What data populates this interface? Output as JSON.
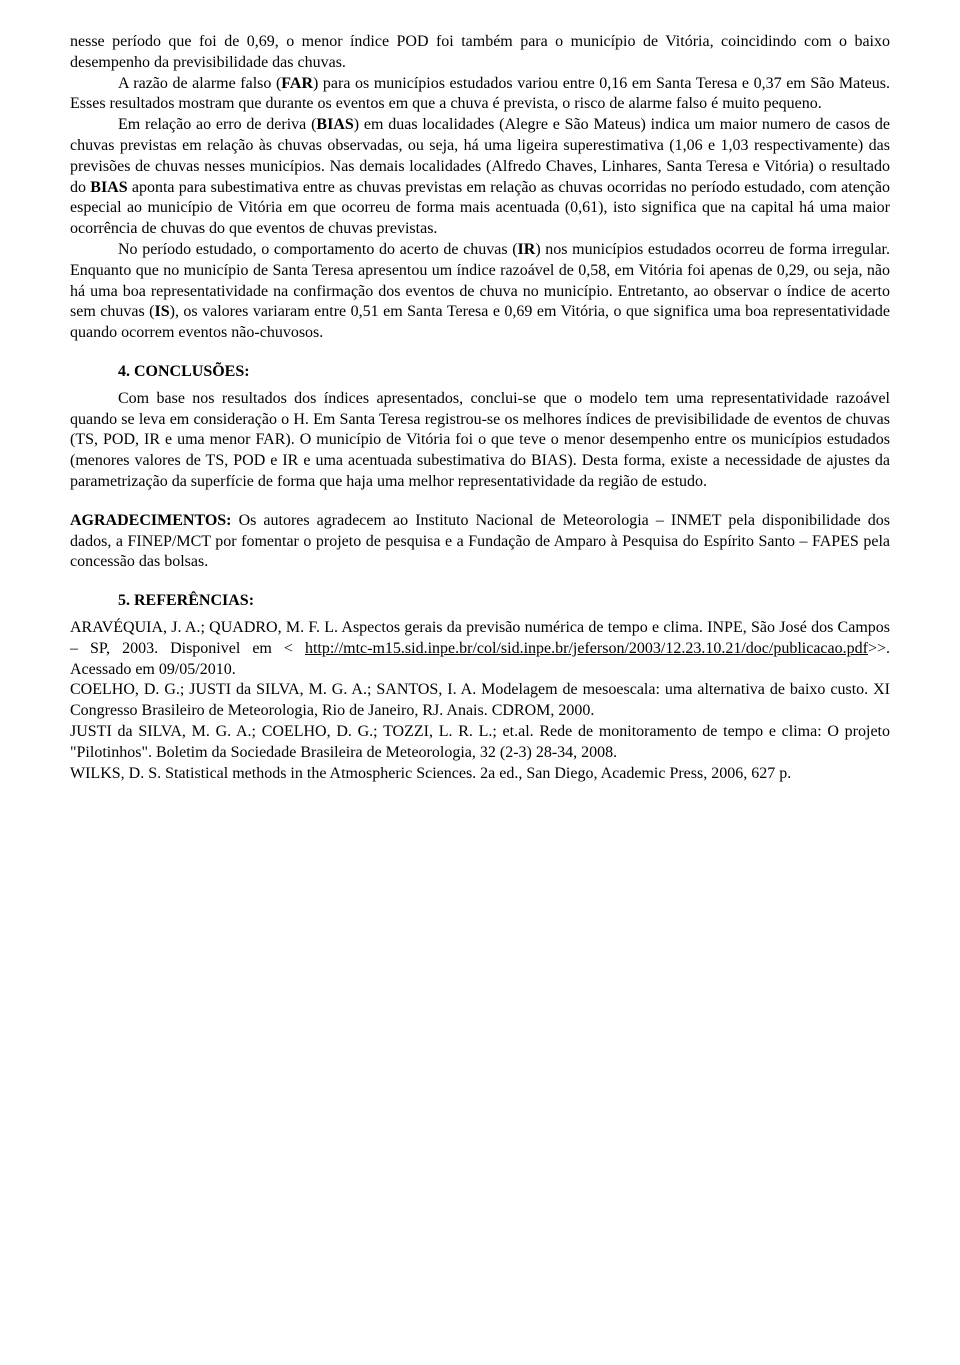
{
  "p1": "nesse período que foi de 0,69, o menor índice POD foi também para o município de Vitória, coincidindo com o baixo desempenho da previsibilidade das chuvas.",
  "p2_a": "A razão de alarme falso (",
  "p2_far": "FAR",
  "p2_b": ") para os municípios estudados variou entre 0,16 em Santa Teresa e 0,37 em São Mateus. Esses resultados mostram que durante os eventos em que a chuva é prevista, o risco de alarme falso é muito pequeno.",
  "p3_a": "Em relação ao erro de deriva (",
  "p3_bias": "BIAS",
  "p3_b": ") em duas localidades (Alegre e São Mateus) indica um maior numero de casos de chuvas previstas em relação às chuvas observadas, ou seja, há uma ligeira superestimativa (1,06 e 1,03 respectivamente) das previsões de chuvas nesses municípios. Nas demais localidades (Alfredo Chaves, Linhares, Santa Teresa e Vitória) o resultado do ",
  "p3_bias2": "BIAS",
  "p3_c": " aponta para subestimativa entre as chuvas previstas em relação as chuvas ocorridas no período estudado, com atenção especial ao município de Vitória em que ocorreu de forma mais acentuada (0,61), isto significa que na capital há uma maior ocorrência de chuvas do que eventos de chuvas previstas.",
  "p4_a": "No período estudado, o comportamento do acerto de chuvas (",
  "p4_ir": "IR",
  "p4_b": ") nos municípios estudados ocorreu de forma irregular. Enquanto que no município de Santa Teresa apresentou um índice razoável de 0,58, em Vitória foi apenas de 0,29, ou seja, não há uma boa representatividade na confirmação dos eventos de chuva no município. Entretanto, ao observar o índice de acerto sem chuvas (",
  "p4_is": "IS",
  "p4_c": "), os valores variaram entre 0,51 em Santa Teresa e 0,69 em Vitória, o que significa uma boa representatividade quando ocorrem eventos não-chuvosos.",
  "sec_conclusoes": "4.  CONCLUSÕES:",
  "p5": "Com base nos resultados dos índices apresentados, conclui-se que o modelo tem uma representatividade razoável quando se leva em consideração o H. Em Santa Teresa registrou-se os melhores índices de previsibilidade de eventos de chuvas (TS, POD, IR e uma menor FAR). O município de Vitória foi o que teve o menor desempenho entre os municípios estudados (menores valores de TS, POD e IR e uma acentuada subestimativa do BIAS). Desta forma, existe a necessidade de ajustes da parametrização da superfície de forma que haja uma melhor representatividade da região de estudo.",
  "ack_label": "AGRADECIMENTOS:",
  "ack_text": " Os autores agradecem ao Instituto Nacional de Meteorologia – INMET pela disponibilidade dos dados, a FINEP/MCT por fomentar o projeto de pesquisa e a Fundação de Amparo à Pesquisa do Espírito Santo – FAPES pela concessão das bolsas.",
  "sec_refs": "5.  REFERÊNCIAS:",
  "ref1_a": "ARAVÉQUIA, J. A.; QUADRO, M. F. L. Aspectos gerais da previsão numérica de tempo e clima. INPE, São José dos Campos – SP, 2003. Disponivel em < ",
  "ref1_link": "http://mtc-m15.sid.inpe.br/col/sid.inpe.br/jeferson/2003/12.23.10.21/doc/publicacao.pdf",
  "ref1_b": ">>. Acessado em 09/05/2010.",
  "ref2": "COELHO, D. G.; JUSTI da SILVA, M. G. A.; SANTOS, I. A. Modelagem de mesoescala: uma alternativa de baixo custo. XI Congresso Brasileiro de Meteorologia, Rio de Janeiro, RJ. Anais. CDROM, 2000.",
  "ref3": "JUSTI da SILVA, M. G. A.; COELHO, D. G.; TOZZI, L. R. L.; et.al. Rede de monitoramento de tempo e clima: O projeto \"Pilotinhos\". Boletim da Sociedade Brasileira de Meteorologia, 32 (2-3) 28-34, 2008.",
  "ref4": "WILKS, D. S. Statistical methods in the Atmospheric Sciences. 2a ed., San Diego, Academic Press, 2006, 627 p."
}
